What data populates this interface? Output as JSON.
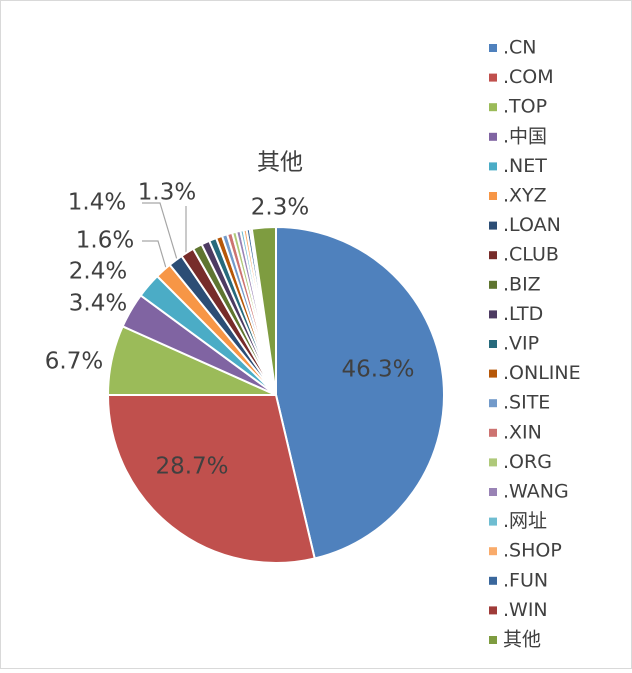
{
  "chart_data": {
    "type": "pie",
    "categories": [
      ".CN",
      ".COM",
      ".TOP",
      ".中国",
      ".NET",
      ".XYZ",
      ".LOAN",
      ".CLUB",
      ".BIZ",
      ".LTD",
      ".VIP",
      ".ONLINE",
      ".SITE",
      ".XIN",
      ".ORG",
      ".WANG",
      ".网址",
      ".SHOP",
      ".FUN",
      ".WIN",
      "其他"
    ],
    "values": [
      46.3,
      28.7,
      6.7,
      3.4,
      2.4,
      1.6,
      1.4,
      1.3,
      0.9,
      0.8,
      0.7,
      0.6,
      0.5,
      0.5,
      0.4,
      0.4,
      0.3,
      0.3,
      0.3,
      0.2,
      2.3
    ],
    "value_labels": [
      "46.3%",
      "28.7%",
      "6.7%",
      "3.4%",
      "2.4%",
      "1.6%",
      "1.4%",
      "1.3%",
      null,
      null,
      null,
      null,
      null,
      null,
      null,
      null,
      null,
      null,
      null,
      null,
      "2.3%"
    ],
    "colors": [
      "#4f81bd",
      "#c0504d",
      "#9bbb59",
      "#8064a2",
      "#4bacc6",
      "#f79646",
      "#2c4d75",
      "#772c2a",
      "#5f7530",
      "#4d3b62",
      "#276a7c",
      "#b65708",
      "#729aca",
      "#cd7371",
      "#afc97a",
      "#9983b5",
      "#6fbdd1",
      "#f9ab6b",
      "#3a679c",
      "#9f3b38",
      "#7e9c40"
    ],
    "legend": "right"
  }
}
